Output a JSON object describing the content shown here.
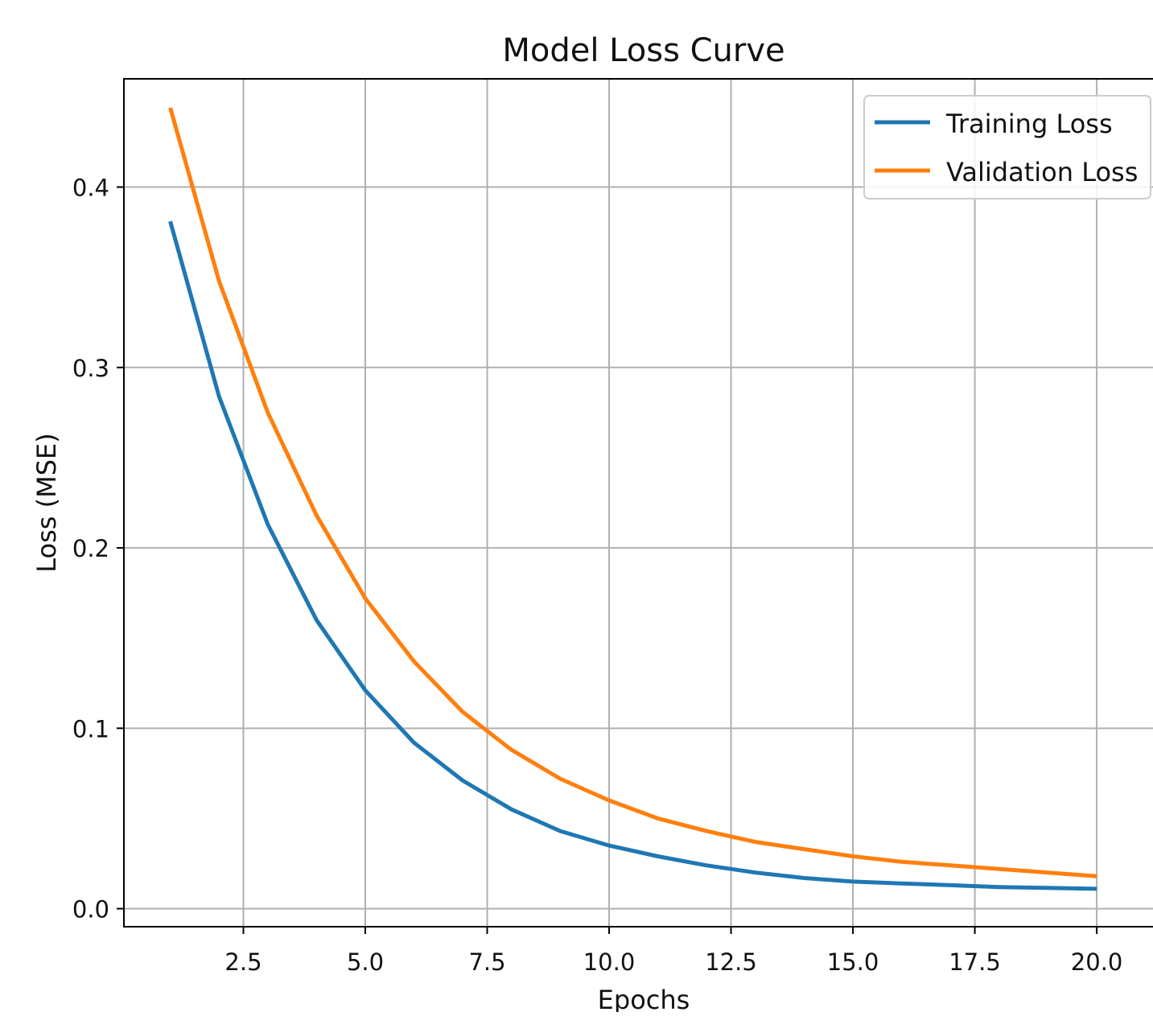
{
  "chart_data": {
    "type": "line",
    "title": "Model Loss Curve",
    "xlabel": "Epochs",
    "ylabel": "Loss (MSE)",
    "x": [
      1,
      2,
      3,
      4,
      5,
      6,
      7,
      8,
      9,
      10,
      11,
      12,
      13,
      14,
      15,
      16,
      17,
      18,
      19,
      20
    ],
    "series": [
      {
        "name": "Training Loss",
        "color": "#1f77b4",
        "values": [
          0.381,
          0.284,
          0.213,
          0.16,
          0.121,
          0.092,
          0.071,
          0.055,
          0.043,
          0.035,
          0.029,
          0.024,
          0.02,
          0.017,
          0.015,
          0.014,
          0.013,
          0.012,
          0.0115,
          0.011
        ]
      },
      {
        "name": "Validation Loss",
        "color": "#ff7f0e",
        "values": [
          0.444,
          0.348,
          0.275,
          0.218,
          0.172,
          0.137,
          0.109,
          0.088,
          0.072,
          0.06,
          0.05,
          0.043,
          0.037,
          0.033,
          0.029,
          0.026,
          0.024,
          0.022,
          0.02,
          0.018
        ]
      }
    ],
    "xlim": [
      0.05,
      21.5
    ],
    "ylim": [
      -0.01,
      0.46
    ],
    "xticks": [
      2.5,
      5.0,
      7.5,
      10.0,
      12.5,
      15.0,
      17.5,
      20.0
    ],
    "xtick_labels": [
      "2.5",
      "5.0",
      "7.5",
      "10.0",
      "12.5",
      "15.0",
      "17.5",
      "20.0"
    ],
    "yticks": [
      0.0,
      0.1,
      0.2,
      0.3,
      0.4
    ],
    "ytick_labels": [
      "0.0",
      "0.1",
      "0.2",
      "0.3",
      "0.4"
    ],
    "grid": true,
    "legend_position": "top-right"
  }
}
